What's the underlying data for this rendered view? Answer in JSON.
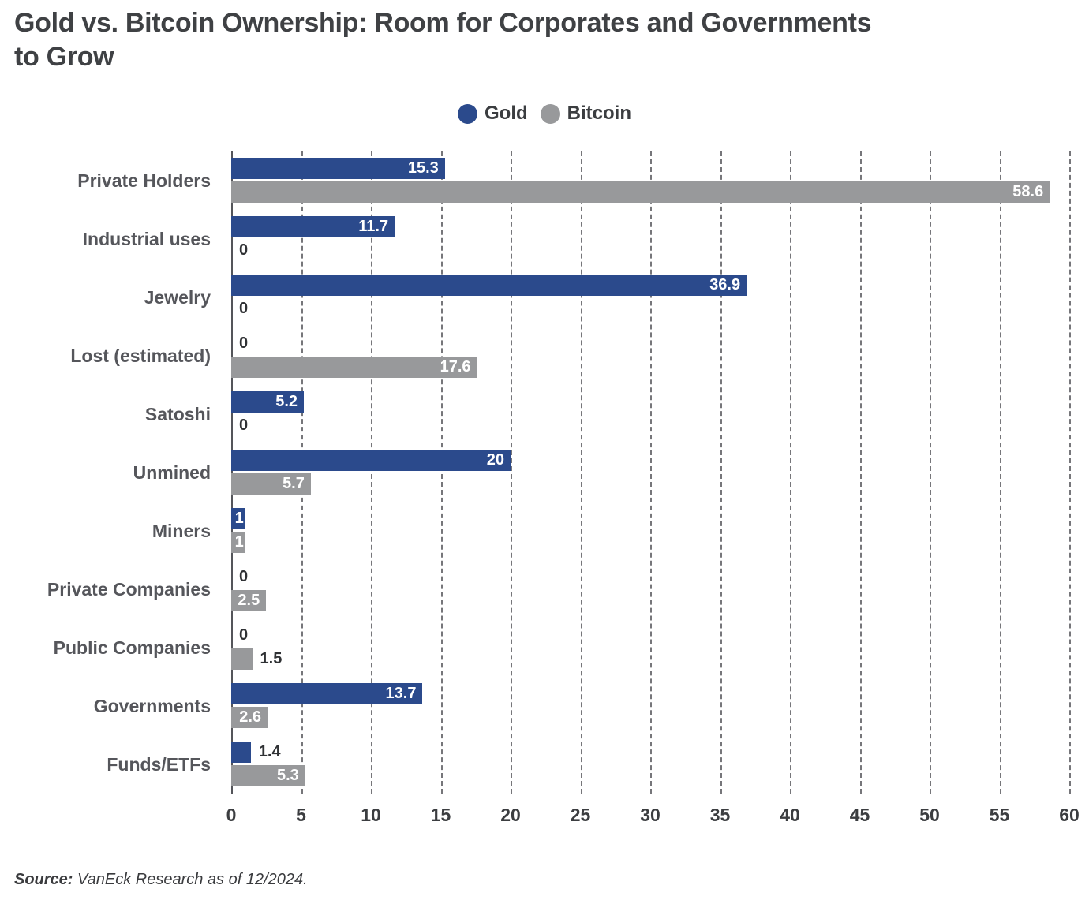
{
  "title": "Gold vs. Bitcoin Ownership: Room for Corporates and Governments\nto Grow",
  "legend": {
    "items": [
      {
        "label": "Gold",
        "color": "#2b4a8c"
      },
      {
        "label": "Bitcoin",
        "color": "#98999b"
      }
    ]
  },
  "source": {
    "prefix": "Source:",
    "text": " VanEck Research as of 12/2024."
  },
  "colors": {
    "gold": "#2b4a8c",
    "bitcoin": "#98999b",
    "grid": "#54555a",
    "label_inside": "#ffffff",
    "label_outside": "#2f3134"
  },
  "chart_data": {
    "type": "bar",
    "orientation": "horizontal",
    "title": "Gold vs. Bitcoin Ownership: Room for Corporates and Governments to Grow",
    "categories": [
      "Private Holders",
      "Industrial uses",
      "Jewelry",
      "Lost (estimated)",
      "Satoshi",
      "Unmined",
      "Miners",
      "Private Companies",
      "Public Companies",
      "Governments",
      "Funds/ETFs"
    ],
    "series": [
      {
        "name": "Gold",
        "color": "#2b4a8c",
        "values": [
          15.3,
          11.7,
          36.9,
          0,
          5.2,
          20,
          1,
          0,
          0,
          13.7,
          1.4
        ],
        "label_inside": [
          true,
          true,
          true,
          false,
          true,
          true,
          true,
          false,
          false,
          true,
          false
        ]
      },
      {
        "name": "Bitcoin",
        "color": "#98999b",
        "values": [
          58.6,
          0,
          0,
          17.6,
          0,
          5.7,
          1,
          2.5,
          1.5,
          2.6,
          5.3
        ],
        "label_inside": [
          true,
          false,
          false,
          true,
          false,
          true,
          true,
          true,
          false,
          true,
          true
        ]
      }
    ],
    "xlim": [
      0,
      60
    ],
    "xticks": [
      0,
      5,
      10,
      15,
      20,
      25,
      30,
      35,
      40,
      45,
      50,
      55,
      60
    ],
    "grid": "vertical-dashed",
    "legend_position": "top-center"
  }
}
